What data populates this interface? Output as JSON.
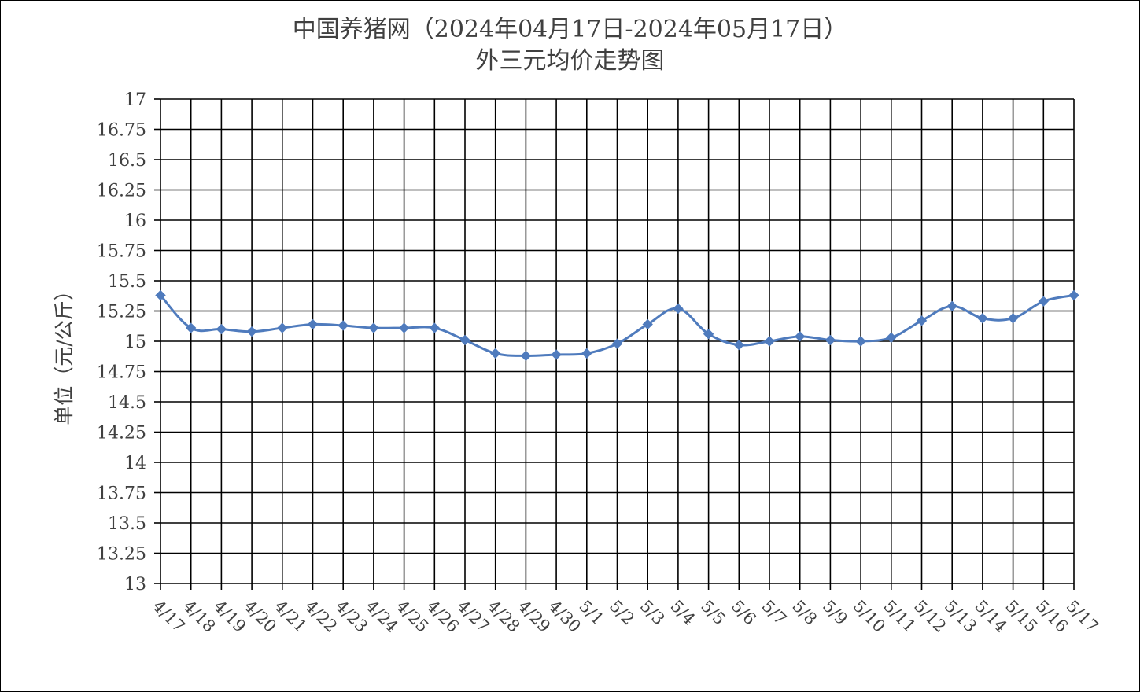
{
  "chart_data": {
    "type": "line",
    "title": "中国养猪网（2024年04月17日-2024年05月17日）",
    "subtitle": "外三元均价走势图",
    "xlabel": "",
    "ylabel": "单位（元/公斤）",
    "ylim": [
      13,
      17
    ],
    "y_ticks": [
      "13",
      "13.25",
      "13.5",
      "13.75",
      "14",
      "14.25",
      "14.5",
      "14.75",
      "15",
      "15.25",
      "15.5",
      "15.75",
      "16",
      "16.25",
      "16.5",
      "16.75",
      "17"
    ],
    "grid": true,
    "legend": "none",
    "categories": [
      "4/17",
      "4/18",
      "4/19",
      "4/20",
      "4/21",
      "4/22",
      "4/23",
      "4/24",
      "4/25",
      "4/26",
      "4/27",
      "4/28",
      "4/29",
      "4/30",
      "5/1",
      "5/2",
      "5/3",
      "5/4",
      "5/5",
      "5/6",
      "5/7",
      "5/8",
      "5/9",
      "5/10",
      "5/11",
      "5/12",
      "5/13",
      "5/14",
      "5/15",
      "5/16",
      "5/17"
    ],
    "series": [
      {
        "values": [
          15.38,
          15.11,
          15.1,
          15.08,
          15.11,
          15.14,
          15.13,
          15.11,
          15.11,
          15.11,
          15.01,
          14.9,
          14.88,
          14.89,
          14.9,
          14.98,
          15.14,
          15.27,
          15.06,
          14.97,
          15.0,
          15.04,
          15.01,
          15.0,
          15.03,
          15.17,
          15.29,
          15.19,
          15.19,
          15.33,
          15.38
        ],
        "color": "#4f7bbd"
      }
    ]
  }
}
